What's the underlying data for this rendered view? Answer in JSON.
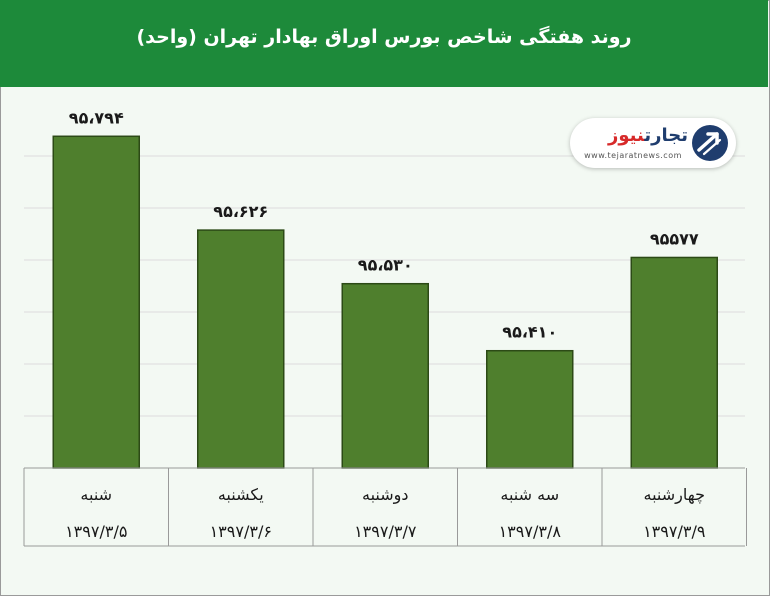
{
  "chart_data": {
    "type": "bar",
    "title": "روند هفتگی شاخص بورس اوراق بهادار تهران (واحد)",
    "categories": [
      "شنبه",
      "یکشنبه",
      "دوشنبه",
      "سه شنبه",
      "چهارشنبه"
    ],
    "dates": [
      "۱۳۹۷/۳/۵",
      "۱۳۹۷/۳/۶",
      "۱۳۹۷/۳/۷",
      "۱۳۹۷/۳/۸",
      "۱۳۹۷/۳/۹"
    ],
    "values": [
      95794,
      95626,
      95530,
      95410,
      95577
    ],
    "value_labels": [
      "۹۵،۷۹۴",
      "۹۵،۶۲۶",
      "۹۵،۵۳۰",
      "۹۵،۴۱۰",
      "۹۵۵۷۷"
    ],
    "ylim": [
      95200,
      95850
    ],
    "grid": true,
    "colors": {
      "header": "#1d8a3a",
      "bar": "#4f7f2d",
      "bar_border": "#2c4a16",
      "plot_bg": "#f3f9f3"
    }
  },
  "logo": {
    "name_main": "تجارت",
    "name_accent": "نیوز",
    "url": "www.tejaratnews.com",
    "icon": "tejarat-news-logo-icon"
  }
}
